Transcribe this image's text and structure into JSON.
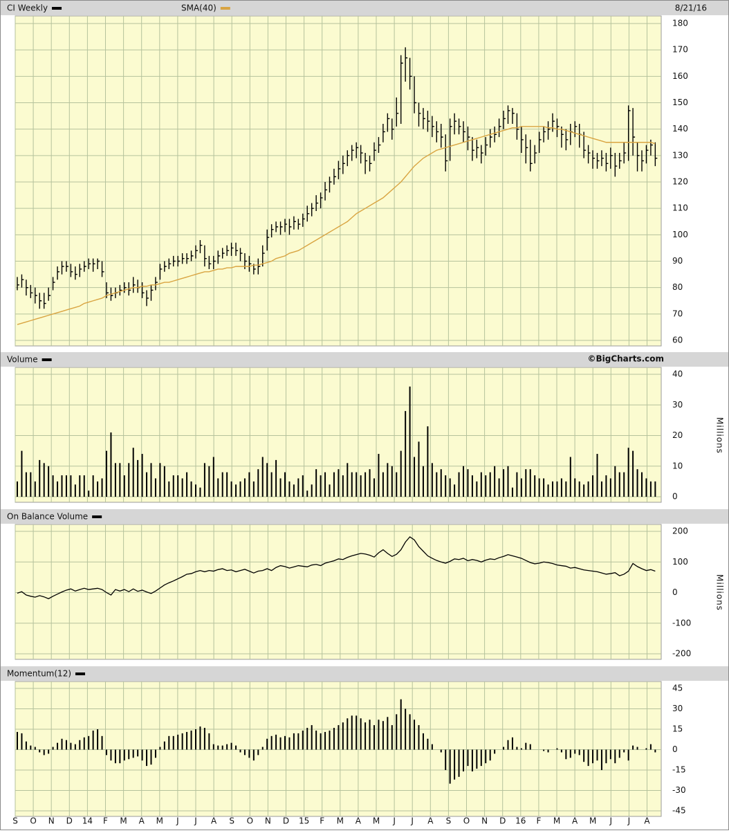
{
  "chart_data": [
    {
      "type": "ohlc",
      "date": "8/21/16",
      "ylim": [
        60,
        180
      ],
      "yticks": [
        60,
        70,
        80,
        90,
        100,
        110,
        120,
        130,
        140,
        150,
        160,
        170,
        180
      ],
      "grid": true,
      "series": [
        {
          "name": "CI Weekly",
          "color": "#000000",
          "high": [
            84,
            85,
            83,
            81,
            80,
            78,
            78,
            80,
            84,
            88,
            90,
            90,
            89,
            88,
            89,
            90,
            91,
            91,
            91,
            90,
            82,
            80,
            80,
            81,
            82,
            82,
            84,
            83,
            82,
            79,
            81,
            84,
            89,
            90,
            91,
            92,
            92,
            93,
            93,
            94,
            96,
            98,
            96,
            92,
            92,
            94,
            95,
            96,
            97,
            97,
            95,
            93,
            92,
            89,
            91,
            96,
            102,
            104,
            105,
            105,
            106,
            106,
            107,
            106,
            108,
            111,
            112,
            115,
            116,
            120,
            122,
            125,
            128,
            130,
            132,
            134,
            135,
            134,
            131,
            130,
            135,
            137,
            142,
            146,
            144,
            152,
            168,
            171,
            167,
            160,
            150,
            148,
            147,
            145,
            143,
            142,
            138,
            144,
            146,
            144,
            143,
            141,
            137,
            136,
            134,
            137,
            140,
            141,
            144,
            147,
            149,
            148,
            146,
            141,
            138,
            136,
            134,
            139,
            141,
            143,
            146,
            144,
            141,
            140,
            142,
            143,
            142,
            139,
            134,
            132,
            131,
            132,
            131,
            133,
            131,
            131,
            135,
            149,
            148,
            135,
            132,
            134,
            136,
            135
          ],
          "low": [
            79,
            80,
            77,
            76,
            74,
            72,
            72,
            75,
            79,
            83,
            85,
            86,
            84,
            83,
            84,
            86,
            87,
            86,
            87,
            84,
            76,
            75,
            76,
            77,
            78,
            77,
            78,
            78,
            76,
            73,
            75,
            79,
            83,
            86,
            87,
            88,
            88,
            89,
            89,
            90,
            91,
            93,
            88,
            87,
            87,
            89,
            91,
            92,
            92,
            92,
            90,
            87,
            86,
            85,
            85,
            88,
            94,
            99,
            101,
            100,
            101,
            100,
            102,
            102,
            103,
            105,
            107,
            109,
            110,
            113,
            116,
            119,
            121,
            123,
            126,
            128,
            129,
            127,
            123,
            124,
            128,
            131,
            135,
            139,
            136,
            141,
            142,
            158,
            155,
            146,
            141,
            140,
            139,
            137,
            135,
            133,
            124,
            128,
            138,
            138,
            135,
            132,
            128,
            129,
            127,
            130,
            133,
            135,
            137,
            140,
            142,
            142,
            136,
            131,
            127,
            124,
            127,
            131,
            135,
            136,
            139,
            137,
            133,
            132,
            134,
            137,
            133,
            129,
            127,
            125,
            125,
            126,
            124,
            125,
            122,
            125,
            127,
            128,
            130,
            124,
            124,
            127,
            130,
            126
          ],
          "close": [
            81,
            83,
            80,
            78,
            77,
            75,
            74,
            77,
            82,
            86,
            88,
            88,
            86,
            85,
            87,
            88,
            89,
            89,
            90,
            86,
            78,
            77,
            78,
            79,
            80,
            79,
            81,
            80,
            78,
            76,
            79,
            82,
            87,
            88,
            89,
            90,
            90,
            91,
            91,
            92,
            94,
            96,
            91,
            89,
            90,
            92,
            93,
            94,
            95,
            94,
            93,
            90,
            89,
            87,
            88,
            93,
            99,
            102,
            103,
            103,
            104,
            103,
            105,
            104,
            106,
            108,
            110,
            112,
            114,
            117,
            120,
            122,
            125,
            127,
            130,
            132,
            133,
            131,
            128,
            127,
            132,
            134,
            139,
            144,
            140,
            146,
            165,
            167,
            160,
            150,
            146,
            144,
            143,
            141,
            139,
            137,
            128,
            141,
            143,
            141,
            139,
            137,
            132,
            133,
            131,
            134,
            137,
            138,
            141,
            144,
            147,
            146,
            140,
            136,
            133,
            127,
            131,
            136,
            139,
            140,
            143,
            141,
            138,
            136,
            139,
            141,
            138,
            132,
            131,
            129,
            128,
            129,
            127,
            130,
            126,
            128,
            131,
            147,
            137,
            130,
            128,
            132,
            134,
            129
          ]
        },
        {
          "name": "SMA(40)",
          "color": "#d9a441",
          "values": [
            66,
            66.5,
            67,
            67.5,
            68,
            68.5,
            69,
            69.5,
            70,
            70.5,
            71,
            71.5,
            72,
            72.5,
            73,
            74,
            74.5,
            75,
            75.5,
            76,
            77,
            77.5,
            78,
            78.5,
            79,
            79.5,
            80,
            80,
            80.5,
            80.5,
            81,
            81,
            81.5,
            82,
            82,
            82.5,
            83,
            83.5,
            84,
            84.5,
            85,
            85.5,
            86,
            86,
            86.5,
            87,
            87,
            87.5,
            87.5,
            88,
            88,
            88,
            88,
            88.5,
            88.5,
            89,
            89.5,
            90,
            91,
            91.5,
            92,
            93,
            93.5,
            94,
            95,
            96,
            97,
            98,
            99,
            100,
            101,
            102,
            103,
            104,
            105,
            106.5,
            108,
            109,
            110,
            111,
            112,
            113,
            114,
            115.5,
            117,
            118.5,
            120,
            122,
            124,
            126,
            127.5,
            129,
            130,
            131,
            132,
            132.5,
            133,
            133.5,
            134,
            134.5,
            135,
            135.5,
            136,
            136.5,
            137,
            137.5,
            138,
            138.5,
            139,
            139.5,
            140,
            140.5,
            140.5,
            141,
            141,
            141,
            141,
            141,
            141,
            140.5,
            140.5,
            140,
            140,
            139.5,
            139,
            138.5,
            138,
            137.5,
            137,
            136.5,
            136,
            135.5,
            135,
            135,
            135,
            135,
            135,
            135,
            135,
            135,
            135,
            135,
            135,
            134.5
          ]
        }
      ]
    },
    {
      "type": "bar",
      "source": "©BigCharts.com",
      "y_label": "Millions",
      "ylim": [
        0,
        40
      ],
      "yticks": [
        0,
        10,
        20,
        30,
        40
      ],
      "grid": true,
      "series": [
        {
          "name": "Volume",
          "color": "#000000",
          "values": [
            5,
            15,
            8,
            8,
            5,
            12,
            11,
            10,
            7,
            5,
            7,
            7,
            7,
            4,
            7,
            7,
            2,
            7,
            5,
            6,
            15,
            21,
            11,
            11,
            7,
            11,
            16,
            12,
            14,
            8,
            11,
            6,
            11,
            10,
            5,
            7,
            7,
            6,
            8,
            5,
            4,
            3,
            11,
            10,
            13,
            6,
            8,
            8,
            5,
            4,
            5,
            6,
            8,
            5,
            9,
            13,
            11,
            8,
            12,
            6,
            8,
            5,
            4,
            6,
            7,
            2,
            4,
            9,
            7,
            8,
            4,
            8,
            9,
            7,
            11,
            8,
            8,
            7,
            8,
            9,
            6,
            14,
            8,
            11,
            10,
            8,
            15,
            28,
            36,
            13,
            18,
            10,
            23,
            11,
            8,
            9,
            7,
            6,
            4,
            8,
            10,
            9,
            7,
            5,
            8,
            7,
            8,
            10,
            6,
            9,
            10,
            3,
            8,
            6,
            9,
            9,
            7,
            6,
            6,
            4,
            5,
            5,
            6,
            5,
            13,
            6,
            5,
            4,
            5,
            7,
            14,
            5,
            7,
            6,
            10,
            8,
            8,
            16,
            15,
            9,
            8,
            6,
            5,
            5
          ]
        }
      ]
    },
    {
      "type": "line",
      "y_label": "Millions",
      "ylim": [
        -200,
        200
      ],
      "yticks": [
        -200,
        -100,
        0,
        100,
        200
      ],
      "grid": true,
      "series": [
        {
          "name": "On Balance Volume",
          "color": "#000000",
          "values": [
            -2,
            3,
            -8,
            -12,
            -15,
            -10,
            -14,
            -20,
            -12,
            -5,
            2,
            8,
            12,
            5,
            10,
            14,
            10,
            12,
            14,
            10,
            0,
            -8,
            10,
            5,
            10,
            3,
            12,
            4,
            8,
            2,
            -3,
            5,
            15,
            25,
            32,
            38,
            45,
            52,
            60,
            62,
            68,
            72,
            68,
            72,
            70,
            75,
            78,
            72,
            74,
            68,
            72,
            76,
            70,
            64,
            70,
            72,
            78,
            72,
            82,
            88,
            85,
            80,
            84,
            88,
            86,
            84,
            90,
            92,
            88,
            96,
            100,
            104,
            110,
            108,
            115,
            120,
            124,
            128,
            126,
            122,
            116,
            130,
            140,
            128,
            118,
            125,
            140,
            165,
            182,
            172,
            150,
            135,
            120,
            112,
            105,
            100,
            96,
            102,
            110,
            108,
            112,
            104,
            108,
            105,
            100,
            106,
            110,
            108,
            114,
            118,
            124,
            120,
            116,
            112,
            105,
            98,
            94,
            96,
            100,
            98,
            95,
            90,
            88,
            86,
            80,
            82,
            78,
            74,
            72,
            70,
            68,
            64,
            60,
            62,
            65,
            55,
            60,
            70,
            95,
            85,
            78,
            72,
            75,
            70
          ]
        }
      ]
    },
    {
      "type": "bar",
      "ylim": [
        -45,
        45
      ],
      "yticks": [
        -45,
        -30,
        -15,
        0,
        15,
        30,
        45
      ],
      "grid": true,
      "x_labels": [
        "S",
        "O",
        "N",
        "D",
        "14",
        "F",
        "M",
        "A",
        "M",
        "J",
        "J",
        "A",
        "S",
        "O",
        "N",
        "D",
        "15",
        "F",
        "M",
        "A",
        "M",
        "J",
        "J",
        "A",
        "S",
        "O",
        "N",
        "D",
        "16",
        "F",
        "M",
        "A",
        "M",
        "J",
        "J",
        "A"
      ],
      "series": [
        {
          "name": "Momentum(12)",
          "color": "#000000",
          "values": [
            13,
            12,
            6,
            3,
            2,
            -2,
            -4,
            -3,
            2,
            5,
            8,
            7,
            5,
            4,
            7,
            9,
            10,
            14,
            15,
            10,
            -4,
            -8,
            -10,
            -10,
            -8,
            -7,
            -6,
            -5,
            -8,
            -12,
            -11,
            -6,
            2,
            6,
            10,
            10,
            11,
            12,
            13,
            14,
            15,
            17,
            16,
            12,
            4,
            3,
            3,
            4,
            5,
            3,
            -2,
            -4,
            -6,
            -8,
            -4,
            2,
            8,
            10,
            11,
            9,
            10,
            9,
            12,
            12,
            14,
            16,
            18,
            14,
            12,
            13,
            14,
            16,
            18,
            20,
            23,
            25,
            25,
            23,
            20,
            22,
            18,
            22,
            21,
            24,
            18,
            26,
            37,
            30,
            26,
            22,
            18,
            12,
            8,
            4,
            0,
            -2,
            -15,
            -25,
            -22,
            -20,
            -16,
            -12,
            -16,
            -14,
            -12,
            -10,
            -8,
            -3,
            0,
            2,
            7,
            9,
            2,
            1,
            5,
            4,
            0,
            0,
            -1,
            -2,
            0,
            1,
            -2,
            -7,
            -6,
            -3,
            -4,
            -9,
            -12,
            -10,
            -8,
            -15,
            -10,
            -7,
            -10,
            -6,
            -2,
            -8,
            3,
            2,
            0,
            1,
            4,
            -2
          ]
        }
      ]
    }
  ]
}
